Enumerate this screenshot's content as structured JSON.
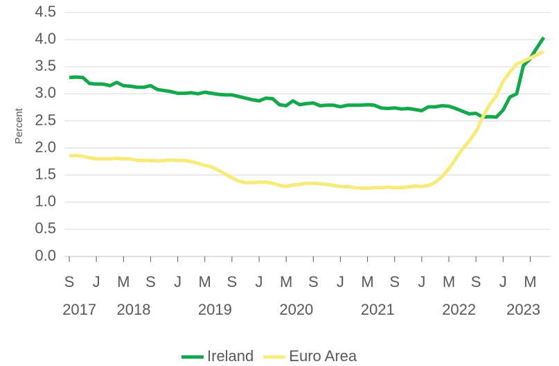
{
  "chart_data": {
    "type": "line",
    "y_label": "Percent",
    "categories": [
      "S",
      null,
      null,
      null,
      "J",
      null,
      null,
      null,
      "M",
      null,
      null,
      null,
      "S",
      null,
      null,
      null,
      "J",
      null,
      null,
      null,
      "M",
      null,
      null,
      null,
      "S",
      null,
      null,
      null,
      "J",
      null,
      null,
      null,
      "M",
      null,
      null,
      null,
      "S",
      null,
      null,
      null,
      "J",
      null,
      null,
      null,
      "M",
      null,
      null,
      null,
      "S",
      null,
      null,
      null,
      "J",
      null,
      null,
      null,
      "M",
      null,
      null,
      null,
      "S",
      null,
      null,
      null,
      "J",
      null,
      null,
      null,
      "M",
      null,
      null
    ],
    "years": [
      "2017",
      "2018",
      "2019",
      "2020",
      "2021",
      "2022",
      "2023"
    ],
    "series": [
      {
        "name": "Ireland",
        "color": "#13a84c",
        "values": [
          3.3,
          3.31,
          3.3,
          3.19,
          3.18,
          3.18,
          3.15,
          3.21,
          3.15,
          3.14,
          3.12,
          3.12,
          3.15,
          3.08,
          3.06,
          3.04,
          3.01,
          3.01,
          3.02,
          3.0,
          3.03,
          3.01,
          2.99,
          2.98,
          2.98,
          2.95,
          2.92,
          2.89,
          2.87,
          2.92,
          2.91,
          2.8,
          2.78,
          2.87,
          2.8,
          2.82,
          2.83,
          2.78,
          2.79,
          2.79,
          2.76,
          2.79,
          2.79,
          2.79,
          2.8,
          2.79,
          2.74,
          2.73,
          2.74,
          2.72,
          2.73,
          2.71,
          2.69,
          2.76,
          2.76,
          2.78,
          2.77,
          2.73,
          2.68,
          2.63,
          2.64,
          2.57,
          2.58,
          2.57,
          2.7,
          2.94,
          3.0,
          3.52,
          3.65,
          3.85,
          4.04
        ]
      },
      {
        "name": "Euro Area",
        "color": "#f8eb7a",
        "values": [
          1.86,
          1.86,
          1.85,
          1.82,
          1.8,
          1.8,
          1.8,
          1.81,
          1.8,
          1.8,
          1.77,
          1.77,
          1.77,
          1.76,
          1.77,
          1.78,
          1.77,
          1.77,
          1.75,
          1.72,
          1.68,
          1.65,
          1.59,
          1.52,
          1.45,
          1.39,
          1.36,
          1.36,
          1.37,
          1.37,
          1.35,
          1.31,
          1.29,
          1.32,
          1.33,
          1.35,
          1.35,
          1.34,
          1.33,
          1.31,
          1.29,
          1.29,
          1.27,
          1.26,
          1.26,
          1.27,
          1.27,
          1.28,
          1.27,
          1.27,
          1.28,
          1.3,
          1.29,
          1.31,
          1.37,
          1.47,
          1.62,
          1.8,
          1.98,
          2.13,
          2.3,
          2.57,
          2.8,
          2.96,
          3.23,
          3.4,
          3.55,
          3.6,
          3.66,
          3.72,
          3.78
        ]
      }
    ],
    "ylim": [
      0,
      4.5
    ],
    "yticks": [
      {
        "value": 0,
        "label": "0.0"
      },
      {
        "value": 0.5,
        "label": "0.5"
      },
      {
        "value": 1,
        "label": "1.0"
      },
      {
        "value": 1.5,
        "label": "1.5"
      },
      {
        "value": 2,
        "label": "2.0"
      },
      {
        "value": 2.5,
        "label": "2.5"
      },
      {
        "value": 3,
        "label": "3.0"
      },
      {
        "value": 3.5,
        "label": "3.5"
      },
      {
        "value": 4,
        "label": "4.0"
      },
      {
        "value": 4.5,
        "label": "4.5"
      }
    ],
    "grid": true,
    "legend": "bottom"
  }
}
